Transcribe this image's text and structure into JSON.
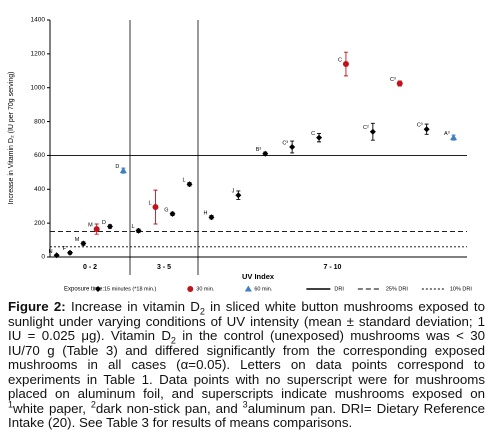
{
  "chart_data": {
    "type": "scatter",
    "y_label": "Increase in Vitamin D₂ (IU per 70g serving)",
    "x_label": "UV Index",
    "categories": [
      "0 - 2",
      "3 - 5",
      "7 - 10"
    ],
    "ylim": [
      0,
      1400
    ],
    "yticks": [
      0,
      200,
      400,
      600,
      800,
      1000,
      1200,
      1400
    ],
    "legend_title": "Exposure time:",
    "series": [
      {
        "name": "15 minutes (*18 min.)",
        "color": "#000000",
        "marker": "diamond"
      },
      {
        "name": "30 min.",
        "color": "#c0141c",
        "marker": "circle"
      },
      {
        "name": "60 min.",
        "color": "#3d7fc0",
        "marker": "triangle"
      }
    ],
    "points": [
      {
        "series": 0,
        "group": 0,
        "label": "N",
        "value": 10,
        "error": 5
      },
      {
        "series": 0,
        "group": 0,
        "label": "F",
        "value": 25,
        "error": 8
      },
      {
        "series": 0,
        "group": 0,
        "label": "M",
        "value": 80,
        "error": 10
      },
      {
        "series": 1,
        "group": 0,
        "label": "M",
        "value": 165,
        "error": 30
      },
      {
        "series": 0,
        "group": 0,
        "label": "D",
        "value": 180,
        "error": 10
      },
      {
        "series": 2,
        "group": 0,
        "label": "D",
        "value": 510,
        "error": 15
      },
      {
        "series": 0,
        "group": 1,
        "label": "L",
        "value": 155,
        "error": 10
      },
      {
        "series": 1,
        "group": 1,
        "label": "L",
        "value": 295,
        "error": 100
      },
      {
        "series": 0,
        "group": 1,
        "label": "G",
        "value": 255,
        "error": 10
      },
      {
        "series": 0,
        "group": 1,
        "label": "L",
        "value": 430,
        "error": 10
      },
      {
        "series": 0,
        "group": 2,
        "label": "H",
        "value": 235,
        "error": 10
      },
      {
        "series": 0,
        "group": 2,
        "label": "J",
        "value": 365,
        "error": 25
      },
      {
        "series": 0,
        "group": 2,
        "label": "B³",
        "value": 610,
        "error": 10
      },
      {
        "series": 0,
        "group": 2,
        "label": "C³",
        "value": 650,
        "error": 35
      },
      {
        "series": 0,
        "group": 2,
        "label": "C",
        "value": 705,
        "error": 25
      },
      {
        "series": 1,
        "group": 2,
        "label": "C",
        "value": 1140,
        "error": 70
      },
      {
        "series": 0,
        "group": 2,
        "label": "C²",
        "value": 740,
        "error": 50
      },
      {
        "series": 1,
        "group": 2,
        "label": "C³",
        "value": 1025,
        "error": 15
      },
      {
        "series": 0,
        "group": 2,
        "label": "C³",
        "value": 755,
        "error": 30
      },
      {
        "series": 2,
        "group": 2,
        "label": "A³",
        "value": 705,
        "error": 15
      }
    ],
    "reference_lines": [
      {
        "name": "DRI",
        "value": 600,
        "style": "solid"
      },
      {
        "name": "25% DRI",
        "value": 150,
        "style": "dashed"
      },
      {
        "name": "10% DRI",
        "value": 60,
        "style": "dotted"
      }
    ]
  },
  "caption": [
    "Figure 2:",
    " Increase in vitamin D",
    "2",
    " in sliced white button mushrooms exposed to sunlight under varying conditions of UV intensity (mean ± standard deviation; 1 IU = 0.025 μg). Vitamin D",
    "2",
    " in the control (unexposed) mushrooms was < 30 IU/70 g (Table 3) and differed significantly from the corresponding exposed mushrooms in all cases (α=0.05). Letters on data points correspond to experiments in Table 1. Data points with no superscript were for mushrooms placed on aluminum foil, and superscripts indicate mushrooms exposed on ",
    "1",
    "white paper, ",
    "2",
    "dark non-stick pan, and ",
    "3",
    "aluminum pan. DRI= Dietary Reference Intake (20). See Table 3 for results of means comparisons."
  ]
}
